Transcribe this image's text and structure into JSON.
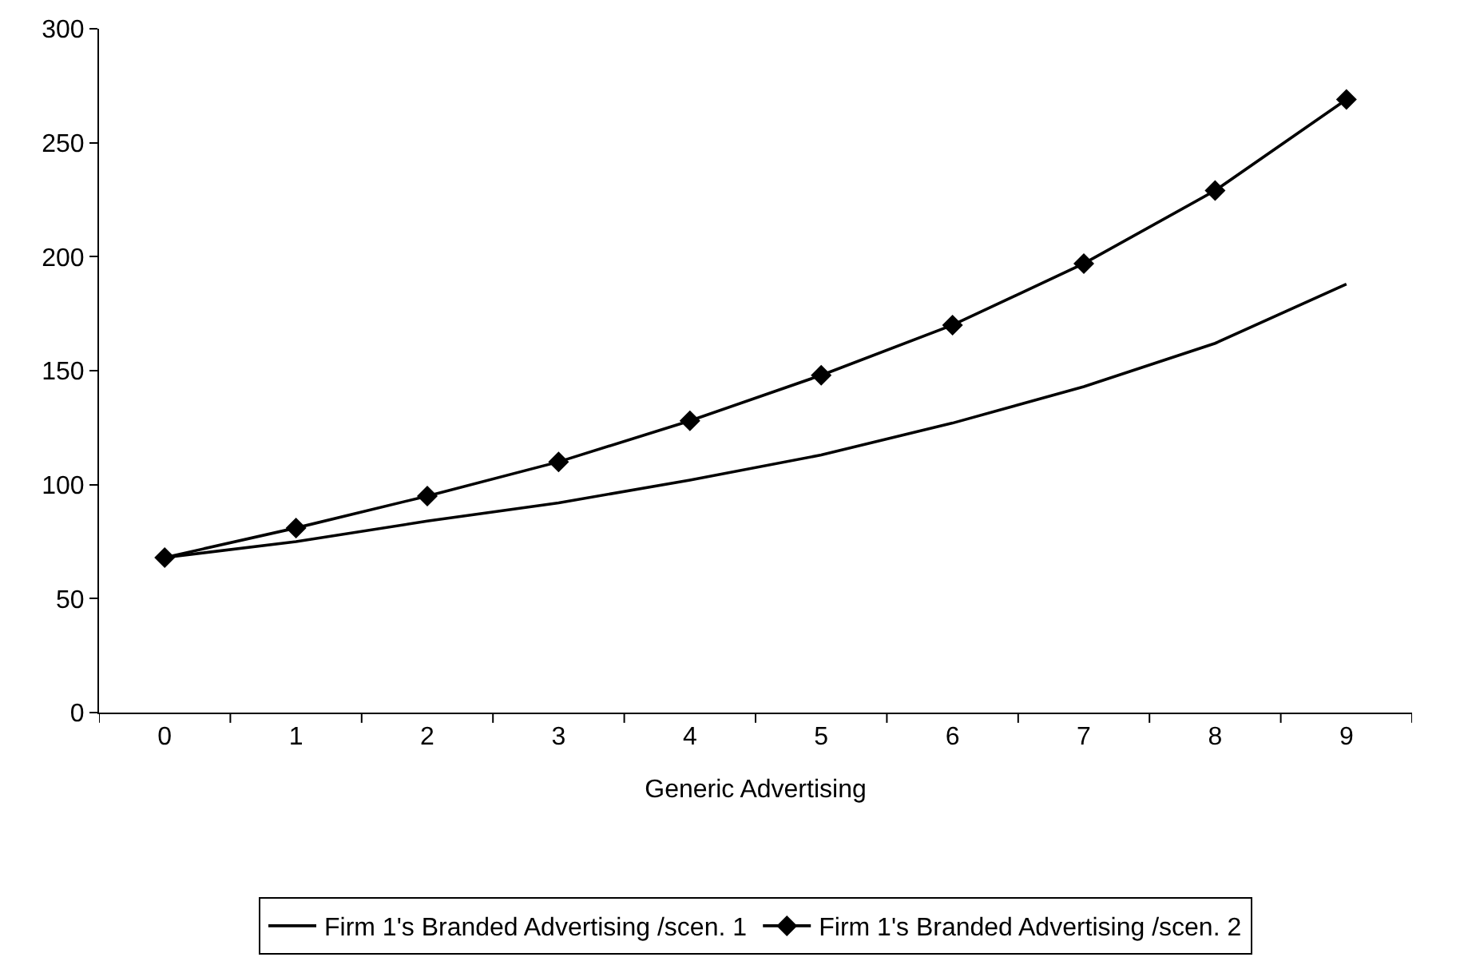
{
  "chart_data": {
    "type": "line",
    "xlabel": "Generic Advertising",
    "categories": [
      "0",
      "1",
      "2",
      "3",
      "4",
      "5",
      "6",
      "7",
      "8",
      "9"
    ],
    "series": [
      {
        "name": "Firm 1's Branded Advertising /scen. 1",
        "color": "#000000",
        "marker": "none",
        "values": [
          68,
          75,
          84,
          92,
          102,
          113,
          127,
          143,
          162,
          188
        ]
      },
      {
        "name": "Firm 1's Branded Advertising /scen. 2",
        "color": "#000000",
        "marker": "diamond",
        "values": [
          68,
          81,
          95,
          110,
          128,
          148,
          170,
          197,
          229,
          269
        ]
      }
    ],
    "ylim": [
      0,
      300
    ],
    "yticks": [
      0,
      50,
      100,
      150,
      200,
      250,
      300
    ],
    "legend": "bottom",
    "line_style": "solid"
  }
}
